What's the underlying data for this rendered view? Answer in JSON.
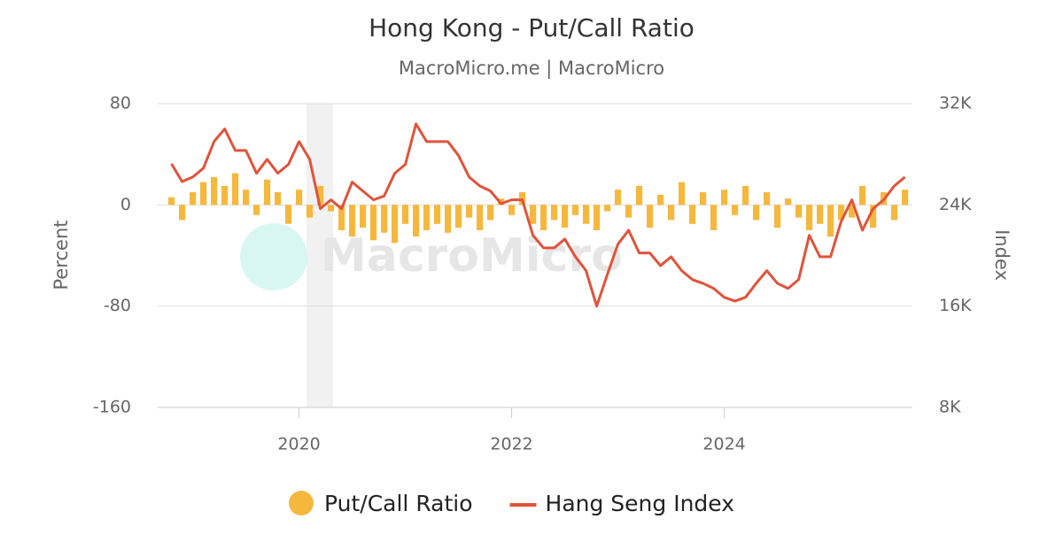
{
  "chart_data": {
    "type": "bar-line",
    "title": "Hong Kong - Put/Call Ratio",
    "subtitle": "MacroMicro.me | MacroMicro",
    "watermark": "MacroMicro",
    "ylabel": "Percent",
    "y2label": "Index",
    "x": [
      2018.8,
      2018.9,
      2019.0,
      2019.1,
      2019.2,
      2019.3,
      2019.4,
      2019.5,
      2019.6,
      2019.7,
      2019.8,
      2019.9,
      2020.0,
      2020.1,
      2020.2,
      2020.3,
      2020.4,
      2020.5,
      2020.6,
      2020.7,
      2020.8,
      2020.9,
      2021.0,
      2021.1,
      2021.2,
      2021.3,
      2021.4,
      2021.5,
      2021.6,
      2021.7,
      2021.8,
      2021.9,
      2022.0,
      2022.1,
      2022.2,
      2022.3,
      2022.4,
      2022.5,
      2022.6,
      2022.7,
      2022.8,
      2022.9,
      2023.0,
      2023.1,
      2023.2,
      2023.3,
      2023.4,
      2023.5,
      2023.6,
      2023.7,
      2023.8,
      2023.9,
      2024.0,
      2024.1,
      2024.2,
      2024.3,
      2024.4,
      2024.5,
      2024.6,
      2024.7,
      2024.8,
      2024.9,
      2025.0,
      2025.1,
      2025.2,
      2025.3,
      2025.4,
      2025.5,
      2025.6,
      2025.7
    ],
    "series": [
      {
        "name": "Put/Call Ratio",
        "color": "#f5b83d",
        "axis": "y",
        "values": [
          6,
          -12,
          10,
          18,
          22,
          15,
          25,
          12,
          -8,
          20,
          10,
          -15,
          12,
          -10,
          15,
          -5,
          -20,
          -25,
          -18,
          -28,
          -22,
          -30,
          -15,
          -25,
          -20,
          -15,
          -22,
          -18,
          -10,
          -20,
          -12,
          5,
          -8,
          10,
          -15,
          -20,
          -12,
          -18,
          -8,
          -15,
          -20,
          -5,
          12,
          -10,
          15,
          -18,
          8,
          -12,
          18,
          -15,
          10,
          -20,
          12,
          -8,
          15,
          -12,
          10,
          -18,
          5,
          -10,
          -20,
          -15,
          -25,
          -12,
          -10,
          15,
          -18,
          10,
          -12,
          12
        ]
      },
      {
        "name": "Hang Seng Index",
        "color": "#e0533a",
        "axis": "y2",
        "values": [
          27240,
          25840,
          26200,
          26900,
          29000,
          30000,
          28300,
          28300,
          26500,
          27600,
          26500,
          27200,
          29000,
          27600,
          23700,
          24400,
          23700,
          25800,
          25100,
          24400,
          24700,
          26500,
          27200,
          30400,
          29000,
          29000,
          29000,
          27900,
          26200,
          25500,
          25100,
          24100,
          24400,
          24400,
          21600,
          20600,
          20600,
          21300,
          19900,
          18800,
          16000,
          18500,
          20900,
          22000,
          20200,
          20200,
          19200,
          19900,
          18800,
          18100,
          17800,
          17400,
          16700,
          16400,
          16700,
          17800,
          18800,
          17800,
          17400,
          18100,
          21600,
          19900,
          19900,
          22700,
          24400,
          22000,
          23700,
          24400,
          25500,
          26200
        ]
      }
    ],
    "bands": [
      [
        2020.07,
        2020.32
      ]
    ],
    "xlim": [
      2018.67,
      2025.77
    ],
    "xticks": [
      2020,
      2022,
      2024
    ],
    "ylim": [
      -160,
      80
    ],
    "yticks": [
      -160,
      -80,
      0,
      80
    ],
    "y2lim": [
      8000,
      32000
    ],
    "y2ticks": [
      {
        "value": 8000,
        "label": "8K"
      },
      {
        "value": 16000,
        "label": "16K"
      },
      {
        "value": 24000,
        "label": "24K"
      },
      {
        "value": 32000,
        "label": "32K"
      }
    ],
    "grid": true,
    "legend": "bottom"
  }
}
